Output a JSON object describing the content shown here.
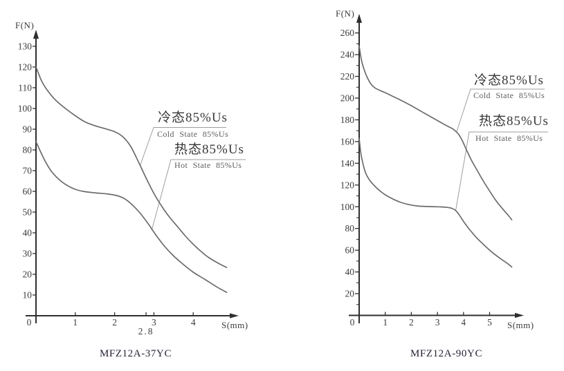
{
  "colors": {
    "curve": "#6b6b6b",
    "axis": "#2e2e2e",
    "leader": "#9d9d9d",
    "tick_text": "#3b3b3b"
  },
  "chart_data": {
    "type": "line",
    "grid": false,
    "charts": [
      {
        "title": "MFZ12A-37YC",
        "ylabel": "F(N)",
        "xlabel": "S(mm)",
        "origin_label": "0",
        "x_unit": "mm",
        "y_unit": "N",
        "xlim": [
          0,
          5
        ],
        "ylim": [
          0,
          140
        ],
        "x_ticks": [
          1,
          2,
          3,
          4
        ],
        "extra_x_tick": {
          "value": 2.8,
          "label": "2.8"
        },
        "y_ticks": [
          10,
          20,
          30,
          40,
          50,
          60,
          70,
          80,
          90,
          100,
          110,
          120,
          130
        ],
        "y_minor_ticks": [],
        "series": [
          {
            "name": "cold-state",
            "callout_zh": "冷态85%Us",
            "callout_en": "Cold State 85%Us",
            "points": [
              [
                0,
                120
              ],
              [
                0.15,
                113
              ],
              [
                0.3,
                108.5
              ],
              [
                0.5,
                104
              ],
              [
                0.75,
                100
              ],
              [
                1,
                96.5
              ],
              [
                1.25,
                93.5
              ],
              [
                1.5,
                91.7
              ],
              [
                1.75,
                90.3
              ],
              [
                2,
                88.8
              ],
              [
                2.2,
                86.5
              ],
              [
                2.4,
                82
              ],
              [
                2.6,
                74.5
              ],
              [
                2.8,
                66.5
              ],
              [
                3,
                59
              ],
              [
                3.2,
                52.8
              ],
              [
                3.4,
                47.5
              ],
              [
                3.6,
                43
              ],
              [
                3.8,
                38.5
              ],
              [
                4,
                34.5
              ],
              [
                4.2,
                31
              ],
              [
                4.4,
                28
              ],
              [
                4.65,
                25.2
              ],
              [
                4.85,
                23.3
              ]
            ]
          },
          {
            "name": "hot-state",
            "callout_zh": "热态85%Us",
            "callout_en": "Hot State 85%Us",
            "points": [
              [
                0,
                84
              ],
              [
                0.12,
                79
              ],
              [
                0.25,
                74
              ],
              [
                0.4,
                69.5
              ],
              [
                0.6,
                65.5
              ],
              [
                0.8,
                62.8
              ],
              [
                1,
                61
              ],
              [
                1.2,
                60
              ],
              [
                1.5,
                59.3
              ],
              [
                1.8,
                58.8
              ],
              [
                2.05,
                58
              ],
              [
                2.25,
                56.5
              ],
              [
                2.45,
                53.5
              ],
              [
                2.65,
                49.5
              ],
              [
                2.85,
                44.5
              ],
              [
                3.05,
                39
              ],
              [
                3.25,
                34
              ],
              [
                3.45,
                29.8
              ],
              [
                3.7,
                25.5
              ],
              [
                4,
                21
              ],
              [
                4.3,
                17.5
              ],
              [
                4.6,
                13.9
              ],
              [
                4.85,
                11.3
              ]
            ]
          }
        ]
      },
      {
        "title": "MFZ12A-90YC",
        "ylabel": "F(N)",
        "xlabel": "S(mm)",
        "origin_label": "0",
        "x_unit": "mm",
        "y_unit": "N",
        "xlim": [
          0,
          6
        ],
        "ylim": [
          0,
          275
        ],
        "x_ticks": [
          1,
          2,
          3,
          4,
          5
        ],
        "extra_x_tick": null,
        "y_ticks": [
          20,
          40,
          60,
          80,
          100,
          120,
          140,
          160,
          180,
          200,
          220,
          240,
          260
        ],
        "y_minor_ticks": [
          10,
          30,
          50,
          70,
          90,
          110,
          130,
          150,
          170,
          190,
          210,
          230,
          250
        ],
        "series": [
          {
            "name": "cold-state",
            "callout_zh": "冷态85%Us",
            "callout_en": "Cold State 85%Us",
            "points": [
              [
                0,
                248
              ],
              [
                0.08,
                236
              ],
              [
                0.18,
                227
              ],
              [
                0.3,
                219.5
              ],
              [
                0.45,
                213
              ],
              [
                0.6,
                209.5
              ],
              [
                0.8,
                207
              ],
              [
                1,
                205
              ],
              [
                1.3,
                201.5
              ],
              [
                1.6,
                198
              ],
              [
                2,
                193
              ],
              [
                2.4,
                187.5
              ],
              [
                2.8,
                182
              ],
              [
                3.1,
                178
              ],
              [
                3.4,
                174
              ],
              [
                3.6,
                171.5
              ],
              [
                3.8,
                167
              ],
              [
                3.95,
                161
              ],
              [
                4.1,
                153
              ],
              [
                4.3,
                143
              ],
              [
                4.5,
                134.5
              ],
              [
                4.75,
                124
              ],
              [
                5,
                114.5
              ],
              [
                5.25,
                105.5
              ],
              [
                5.5,
                98
              ],
              [
                5.7,
                92.5
              ],
              [
                5.85,
                88
              ]
            ]
          },
          {
            "name": "hot-state",
            "callout_zh": "热态85%Us",
            "callout_en": "Hot State 85%Us",
            "points": [
              [
                0,
                163
              ],
              [
                0.06,
                150
              ],
              [
                0.14,
                140
              ],
              [
                0.25,
                131
              ],
              [
                0.4,
                124.5
              ],
              [
                0.6,
                119
              ],
              [
                0.8,
                114.5
              ],
              [
                1,
                111
              ],
              [
                1.3,
                107
              ],
              [
                1.6,
                104
              ],
              [
                1.9,
                102
              ],
              [
                2.2,
                100.8
              ],
              [
                2.6,
                100.2
              ],
              [
                3,
                100
              ],
              [
                3.3,
                99.6
              ],
              [
                3.55,
                98.6
              ],
              [
                3.7,
                96.5
              ],
              [
                3.85,
                92
              ],
              [
                4,
                86.5
              ],
              [
                4.2,
                80
              ],
              [
                4.5,
                71.5
              ],
              [
                4.8,
                64.5
              ],
              [
                5.1,
                58
              ],
              [
                5.4,
                52.5
              ],
              [
                5.7,
                47.5
              ],
              [
                5.85,
                44.5
              ]
            ]
          }
        ]
      }
    ]
  }
}
